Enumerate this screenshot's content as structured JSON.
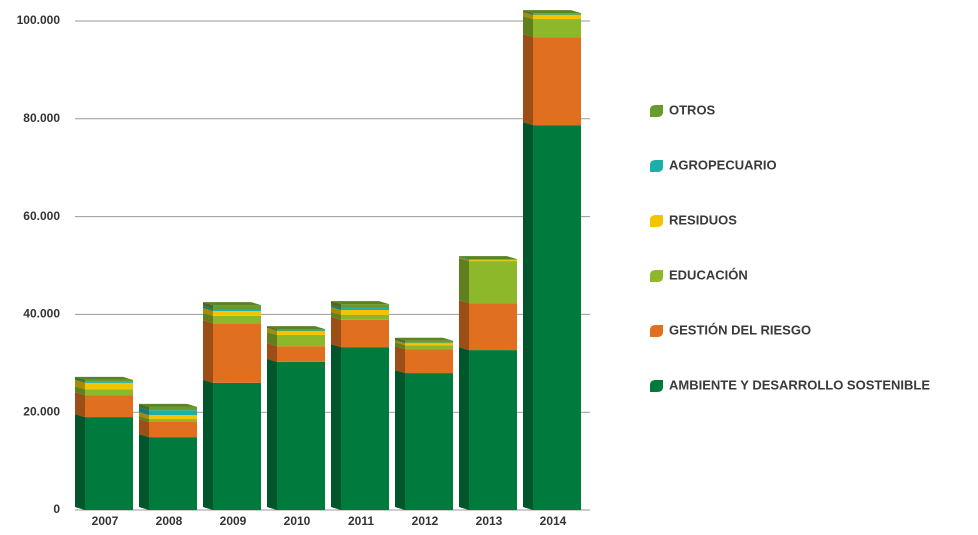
{
  "chart_data": {
    "type": "bar",
    "stacked": true,
    "categories": [
      "2007",
      "2008",
      "2009",
      "2010",
      "2011",
      "2012",
      "2013",
      "2014"
    ],
    "series": [
      {
        "name": "AMBIENTE Y DESARROLLO SOSTENIBLE",
        "color": "#007a3d",
        "values": [
          19.0,
          14.9,
          26.0,
          30.3,
          33.3,
          28.0,
          32.7,
          78.7
        ]
      },
      {
        "name": "GESTIÓN DEL RIESGO",
        "color": "#e07020",
        "values": [
          4.5,
          3.1,
          12.2,
          3.2,
          5.6,
          4.9,
          9.6,
          18.0
        ]
      },
      {
        "name": "EDUCACIÓN",
        "color": "#8cb82a",
        "values": [
          1.2,
          0.6,
          1.5,
          2.3,
          1.0,
          0.8,
          8.6,
          3.7
        ]
      },
      {
        "name": "RESIDUOS",
        "color": "#f5c400",
        "values": [
          1.3,
          0.8,
          1.0,
          0.8,
          1.0,
          0.4,
          0.2,
          0.8
        ]
      },
      {
        "name": "AGROPECUARIO",
        "color": "#1ab0a8",
        "values": [
          0.2,
          1.0,
          0.4,
          0.1,
          0.4,
          0.1,
          0.1,
          0.1
        ]
      },
      {
        "name": "OTROS",
        "color": "#6a9a2a",
        "values": [
          0.4,
          0.7,
          0.8,
          0.3,
          0.8,
          0.4,
          0.1,
          0.3
        ]
      }
    ],
    "ylim": [
      0,
      100
    ],
    "yticks": [
      0,
      {
        "value": 20,
        "label": "20.000"
      },
      {
        "value": 40,
        "label": "40.000"
      },
      {
        "value": 60,
        "label": "60.000"
      },
      {
        "value": 80,
        "label": "80.000"
      },
      {
        "value": 100,
        "label": "100.000"
      }
    ],
    "grid": true,
    "legend": "right"
  }
}
